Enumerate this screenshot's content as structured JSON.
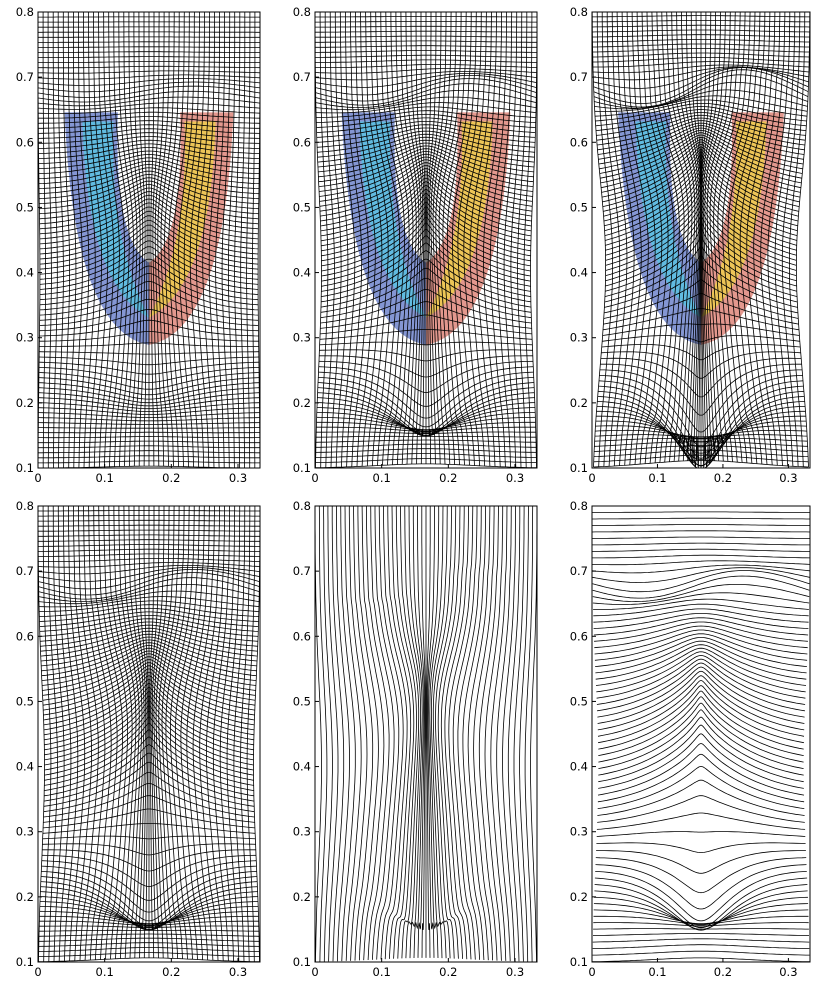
{
  "figure": {
    "panels": [
      {
        "id": "panel-1",
        "style": "mesh",
        "colored": true,
        "stage": 1
      },
      {
        "id": "panel-2",
        "style": "mesh",
        "colored": true,
        "stage": 2
      },
      {
        "id": "panel-3",
        "style": "mesh",
        "colored": true,
        "stage": 3
      },
      {
        "id": "panel-4",
        "style": "mesh",
        "colored": false,
        "stage": 2
      },
      {
        "id": "panel-5",
        "style": "vertical-lines",
        "colored": false,
        "stage": 2
      },
      {
        "id": "panel-6",
        "style": "horizontal-lines",
        "colored": false,
        "stage": 2
      }
    ],
    "axes": {
      "x_range": [
        0,
        0.333
      ],
      "y_range": [
        0.1,
        0.8
      ],
      "x_ticks": [
        0,
        0.1,
        0.2,
        0.3
      ],
      "x_tick_labels": [
        "0",
        "0.1",
        "0.2",
        "0.3"
      ],
      "y_ticks": [
        0.1,
        0.2,
        0.3,
        0.4,
        0.5,
        0.6,
        0.7,
        0.8
      ],
      "y_tick_labels": [
        "0.1",
        "0.2",
        "0.3",
        "0.4",
        "0.5",
        "0.6",
        "0.7",
        "0.8"
      ]
    },
    "colors": {
      "line": "#000000",
      "cold": "#1f3fae",
      "cool": "#4fd0e6",
      "warm": "#f2dd3a",
      "hot": "#c8321e"
    }
  }
}
